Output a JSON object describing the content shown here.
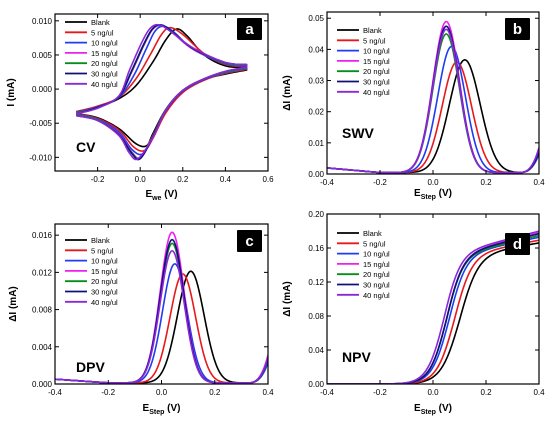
{
  "series_legend": [
    "Blank",
    "5 ng/ul",
    "10 ng/ul",
    "15 ng/ul",
    "20 ng/ul",
    "30 ng/ul",
    "40 ng/ul"
  ],
  "series_colors": [
    "#000000",
    "#e8191b",
    "#1f3cf0",
    "#f01ef0",
    "#0a8c1c",
    "#10107a",
    "#8a28d8"
  ],
  "chart_data": [
    {
      "id": "a",
      "type": "line",
      "panel_label": "a",
      "technique": "CV",
      "xlabel_main": "E",
      "xlabel_sub": "we",
      "xlabel_unit": " (V)",
      "ylabel": "I (mA)",
      "xlim": [
        -0.4,
        0.6
      ],
      "ylim": [
        -0.012,
        0.011
      ],
      "xticks": [
        -0.4,
        -0.2,
        0.0,
        0.2,
        0.4,
        0.6
      ],
      "xtick_labels": [
        "",
        "-0.2",
        "0.0",
        "0.2",
        "0.4",
        "0.6"
      ],
      "yticks": [
        -0.01,
        -0.005,
        0.0,
        0.005,
        0.01
      ],
      "ytick_labels": [
        "-0.010",
        "-0.005",
        "0.000",
        "0.005",
        "0.010"
      ],
      "legend": "top-left",
      "grid": false,
      "series": [
        {
          "name": "Blank",
          "anodic": [
            [
              -0.3,
              -0.0033
            ],
            [
              -0.2,
              -0.0026
            ],
            [
              -0.1,
              -0.0014
            ],
            [
              -0.02,
              0.0005
            ],
            [
              0.06,
              0.004
            ],
            [
              0.12,
              0.0072
            ],
            [
              0.17,
              0.0088
            ],
            [
              0.22,
              0.0078
            ],
            [
              0.3,
              0.005
            ],
            [
              0.4,
              0.0034
            ],
            [
              0.5,
              0.0032
            ]
          ],
          "cathodic": [
            [
              0.5,
              0.0028
            ],
            [
              0.4,
              0.0022
            ],
            [
              0.3,
              0.0014
            ],
            [
              0.2,
              -0.0002
            ],
            [
              0.12,
              -0.003
            ],
            [
              0.06,
              -0.0065
            ],
            [
              0.03,
              -0.0083
            ],
            [
              -0.02,
              -0.008
            ],
            [
              -0.1,
              -0.0058
            ],
            [
              -0.2,
              -0.0042
            ],
            [
              -0.3,
              -0.0036
            ]
          ]
        },
        {
          "name": "5 ng/ul",
          "anodic": [
            [
              -0.3,
              -0.0033
            ],
            [
              -0.2,
              -0.0025
            ],
            [
              -0.1,
              -0.0012
            ],
            [
              -0.02,
              0.0015
            ],
            [
              0.05,
              0.0052
            ],
            [
              0.1,
              0.008
            ],
            [
              0.14,
              0.009
            ],
            [
              0.2,
              0.008
            ],
            [
              0.3,
              0.0052
            ],
            [
              0.4,
              0.0036
            ],
            [
              0.5,
              0.0033
            ]
          ],
          "cathodic": [
            [
              0.5,
              0.0029
            ],
            [
              0.4,
              0.0023
            ],
            [
              0.3,
              0.0013
            ],
            [
              0.2,
              -0.0005
            ],
            [
              0.12,
              -0.0035
            ],
            [
              0.06,
              -0.0072
            ],
            [
              0.02,
              -0.009
            ],
            [
              -0.03,
              -0.0085
            ],
            [
              -0.1,
              -0.006
            ],
            [
              -0.2,
              -0.0043
            ],
            [
              -0.3,
              -0.0036
            ]
          ]
        },
        {
          "name": "10 ng/ul",
          "anodic": [
            [
              -0.3,
              -0.0034
            ],
            [
              -0.2,
              -0.0026
            ],
            [
              -0.1,
              -0.0012
            ],
            [
              -0.03,
              0.002
            ],
            [
              0.03,
              0.006
            ],
            [
              0.07,
              0.0085
            ],
            [
              0.11,
              0.0092
            ],
            [
              0.16,
              0.0083
            ],
            [
              0.25,
              0.0058
            ],
            [
              0.4,
              0.0037
            ],
            [
              0.5,
              0.0034
            ]
          ],
          "cathodic": [
            [
              0.5,
              0.003
            ],
            [
              0.4,
              0.0024
            ],
            [
              0.3,
              0.0014
            ],
            [
              0.2,
              -0.0003
            ],
            [
              0.12,
              -0.0032
            ],
            [
              0.06,
              -0.007
            ],
            [
              0.01,
              -0.0095
            ],
            [
              -0.04,
              -0.0088
            ],
            [
              -0.1,
              -0.0063
            ],
            [
              -0.2,
              -0.0044
            ],
            [
              -0.3,
              -0.0037
            ]
          ]
        },
        {
          "name": "15 ng/ul",
          "anodic": [
            [
              -0.3,
              -0.0035
            ],
            [
              -0.2,
              -0.0027
            ],
            [
              -0.1,
              -0.0011
            ],
            [
              -0.04,
              0.0025
            ],
            [
              0.02,
              0.0066
            ],
            [
              0.06,
              0.0088
            ],
            [
              0.1,
              0.0093
            ],
            [
              0.15,
              0.0083
            ],
            [
              0.25,
              0.0058
            ],
            [
              0.4,
              0.0038
            ],
            [
              0.5,
              0.0035
            ]
          ],
          "cathodic": [
            [
              0.5,
              0.0031
            ],
            [
              0.4,
              0.0025
            ],
            [
              0.3,
              0.0015
            ],
            [
              0.2,
              -0.0002
            ],
            [
              0.12,
              -0.003
            ],
            [
              0.06,
              -0.0068
            ],
            [
              0.0,
              -0.01
            ],
            [
              -0.04,
              -0.0092
            ],
            [
              -0.1,
              -0.0066
            ],
            [
              -0.2,
              -0.0045
            ],
            [
              -0.3,
              -0.0038
            ]
          ]
        },
        {
          "name": "20 ng/ul",
          "anodic": [
            [
              -0.3,
              -0.0035
            ],
            [
              -0.2,
              -0.0027
            ],
            [
              -0.1,
              -0.0011
            ],
            [
              -0.04,
              0.0026
            ],
            [
              0.02,
              0.0067
            ],
            [
              0.06,
              0.0089
            ],
            [
              0.1,
              0.0093
            ],
            [
              0.15,
              0.0084
            ],
            [
              0.25,
              0.0059
            ],
            [
              0.4,
              0.0038
            ],
            [
              0.5,
              0.0035
            ]
          ],
          "cathodic": [
            [
              0.5,
              0.0031
            ],
            [
              0.4,
              0.0025
            ],
            [
              0.3,
              0.0015
            ],
            [
              0.2,
              -0.0002
            ],
            [
              0.12,
              -0.003
            ],
            [
              0.06,
              -0.0069
            ],
            [
              0.0,
              -0.0101
            ],
            [
              -0.04,
              -0.0093
            ],
            [
              -0.1,
              -0.0067
            ],
            [
              -0.2,
              -0.0045
            ],
            [
              -0.3,
              -0.0038
            ]
          ]
        },
        {
          "name": "30 ng/ul",
          "anodic": [
            [
              -0.3,
              -0.0036
            ],
            [
              -0.2,
              -0.0027
            ],
            [
              -0.1,
              -0.0011
            ],
            [
              -0.04,
              0.0027
            ],
            [
              0.02,
              0.0068
            ],
            [
              0.06,
              0.0089
            ],
            [
              0.1,
              0.0094
            ],
            [
              0.15,
              0.0084
            ],
            [
              0.25,
              0.0059
            ],
            [
              0.4,
              0.0039
            ],
            [
              0.5,
              0.0036
            ]
          ],
          "cathodic": [
            [
              0.5,
              0.0032
            ],
            [
              0.4,
              0.0026
            ],
            [
              0.3,
              0.0015
            ],
            [
              0.2,
              -0.0002
            ],
            [
              0.12,
              -0.0031
            ],
            [
              0.06,
              -0.007
            ],
            [
              0.0,
              -0.0102
            ],
            [
              -0.04,
              -0.0094
            ],
            [
              -0.1,
              -0.0067
            ],
            [
              -0.2,
              -0.0046
            ],
            [
              -0.3,
              -0.0039
            ]
          ]
        },
        {
          "name": "40 ng/ul",
          "anodic": [
            [
              -0.3,
              -0.0036
            ],
            [
              -0.2,
              -0.0028
            ],
            [
              -0.1,
              -0.001
            ],
            [
              -0.05,
              0.0028
            ],
            [
              0.01,
              0.007
            ],
            [
              0.05,
              0.009
            ],
            [
              0.09,
              0.0094
            ],
            [
              0.14,
              0.0085
            ],
            [
              0.25,
              0.006
            ],
            [
              0.4,
              0.0039
            ],
            [
              0.5,
              0.0036
            ]
          ],
          "cathodic": [
            [
              0.5,
              0.0032
            ],
            [
              0.4,
              0.0026
            ],
            [
              0.3,
              0.0015
            ],
            [
              0.2,
              -0.0002
            ],
            [
              0.12,
              -0.0031
            ],
            [
              0.06,
              -0.0071
            ],
            [
              -0.01,
              -0.0102
            ],
            [
              -0.05,
              -0.0094
            ],
            [
              -0.1,
              -0.0068
            ],
            [
              -0.2,
              -0.0046
            ],
            [
              -0.3,
              -0.0039
            ]
          ]
        }
      ]
    },
    {
      "id": "b",
      "type": "line",
      "panel_label": "b",
      "technique": "SWV",
      "xlabel_main": "E",
      "xlabel_sub": "Step",
      "xlabel_unit": " (V)",
      "ylabel": "ΔI (mA)",
      "xlim": [
        -0.4,
        0.4
      ],
      "ylim": [
        0.0,
        0.052
      ],
      "xticks": [
        -0.4,
        -0.2,
        0.0,
        0.2,
        0.4
      ],
      "xtick_labels": [
        "-0.4",
        "-0.2",
        "0.0",
        "0.2",
        "0.4"
      ],
      "yticks": [
        0.0,
        0.01,
        0.02,
        0.03,
        0.04,
        0.05
      ],
      "ytick_labels": [
        "0.00",
        "0.01",
        "0.02",
        "0.03",
        "0.04",
        "0.05"
      ],
      "legend": "top-left",
      "grid": false,
      "series": [
        {
          "name": "Blank",
          "peak_x": 0.12,
          "peak_y": 0.0362,
          "sigma": 0.058,
          "baseline": 0.0015,
          "tail": 0.007
        },
        {
          "name": "5 ng/ul",
          "peak_x": 0.09,
          "peak_y": 0.0355,
          "sigma": 0.055,
          "baseline": 0.0015,
          "tail": 0.006
        },
        {
          "name": "10 ng/ul",
          "peak_x": 0.07,
          "peak_y": 0.0405,
          "sigma": 0.052,
          "baseline": 0.0015,
          "tail": 0.006
        },
        {
          "name": "15 ng/ul",
          "peak_x": 0.05,
          "peak_y": 0.0485,
          "sigma": 0.05,
          "baseline": 0.0015,
          "tail": 0.008
        },
        {
          "name": "20 ng/ul",
          "peak_x": 0.05,
          "peak_y": 0.0445,
          "sigma": 0.05,
          "baseline": 0.0015,
          "tail": 0.007
        },
        {
          "name": "30 ng/ul",
          "peak_x": 0.05,
          "peak_y": 0.047,
          "sigma": 0.05,
          "baseline": 0.0015,
          "tail": 0.007
        },
        {
          "name": "40 ng/ul",
          "peak_x": 0.05,
          "peak_y": 0.046,
          "sigma": 0.05,
          "baseline": 0.0015,
          "tail": 0.008
        }
      ]
    },
    {
      "id": "c",
      "type": "line",
      "panel_label": "c",
      "technique": "DPV",
      "xlabel_main": "E",
      "xlabel_sub": "Step",
      "xlabel_unit": " (V)",
      "ylabel": "ΔI (mA)",
      "xlim": [
        -0.4,
        0.4
      ],
      "ylim": [
        0.0,
        0.0172
      ],
      "xticks": [
        -0.4,
        -0.2,
        0.0,
        0.2,
        0.4
      ],
      "xtick_labels": [
        "-0.4",
        "-0.2",
        "0.0",
        "0.2",
        "0.4"
      ],
      "yticks": [
        0.0,
        0.004,
        0.008,
        0.012,
        0.016
      ],
      "ytick_labels": [
        "0.000",
        "0.004",
        "0.008",
        "0.012",
        "0.016"
      ],
      "legend": "top-left",
      "grid": false,
      "series": [
        {
          "name": "Blank",
          "peak_x": 0.11,
          "peak_y": 0.012,
          "sigma": 0.05,
          "baseline": 0.0004,
          "tail": 0.0025
        },
        {
          "name": "5 ng/ul",
          "peak_x": 0.08,
          "peak_y": 0.0117,
          "sigma": 0.048,
          "baseline": 0.0004,
          "tail": 0.0022
        },
        {
          "name": "10 ng/ul",
          "peak_x": 0.05,
          "peak_y": 0.0128,
          "sigma": 0.046,
          "baseline": 0.0004,
          "tail": 0.0022
        },
        {
          "name": "15 ng/ul",
          "peak_x": 0.04,
          "peak_y": 0.0162,
          "sigma": 0.045,
          "baseline": 0.0004,
          "tail": 0.003
        },
        {
          "name": "20 ng/ul",
          "peak_x": 0.04,
          "peak_y": 0.015,
          "sigma": 0.045,
          "baseline": 0.0004,
          "tail": 0.0026
        },
        {
          "name": "30 ng/ul",
          "peak_x": 0.04,
          "peak_y": 0.0154,
          "sigma": 0.045,
          "baseline": 0.0004,
          "tail": 0.0027
        },
        {
          "name": "40 ng/ul",
          "peak_x": 0.04,
          "peak_y": 0.0142,
          "sigma": 0.045,
          "baseline": 0.0004,
          "tail": 0.0028
        }
      ]
    },
    {
      "id": "d",
      "type": "line",
      "panel_label": "d",
      "technique": "NPV",
      "xlabel_main": "E",
      "xlabel_sub": "Step",
      "xlabel_unit": " (V)",
      "ylabel": "ΔI (mA)",
      "xlim": [
        -0.4,
        0.4
      ],
      "ylim": [
        0.0,
        0.2
      ],
      "xticks": [
        -0.4,
        -0.2,
        0.0,
        0.2,
        0.4
      ],
      "xtick_labels": [
        "-0.4",
        "-0.2",
        "0.0",
        "0.2",
        "0.4"
      ],
      "yticks": [
        0.0,
        0.04,
        0.08,
        0.12,
        0.16,
        0.2
      ],
      "ytick_labels": [
        "0.00",
        "0.04",
        "0.08",
        "0.12",
        "0.16",
        "0.20"
      ],
      "legend": "top-left",
      "grid": false,
      "series": [
        {
          "name": "Blank",
          "mid_x": 0.1,
          "plateau": 0.15,
          "width": 0.035,
          "slope": 0.016
        },
        {
          "name": "5 ng/ul",
          "mid_x": 0.08,
          "plateau": 0.15,
          "width": 0.033,
          "slope": 0.018
        },
        {
          "name": "10 ng/ul",
          "mid_x": 0.06,
          "plateau": 0.15,
          "width": 0.032,
          "slope": 0.02
        },
        {
          "name": "15 ng/ul",
          "mid_x": 0.05,
          "plateau": 0.15,
          "width": 0.031,
          "slope": 0.024
        },
        {
          "name": "20 ng/ul",
          "mid_x": 0.05,
          "plateau": 0.149,
          "width": 0.031,
          "slope": 0.022
        },
        {
          "name": "30 ng/ul",
          "mid_x": 0.05,
          "plateau": 0.15,
          "width": 0.031,
          "slope": 0.023
        },
        {
          "name": "40 ng/ul",
          "mid_x": 0.04,
          "plateau": 0.151,
          "width": 0.031,
          "slope": 0.024
        }
      ]
    }
  ]
}
